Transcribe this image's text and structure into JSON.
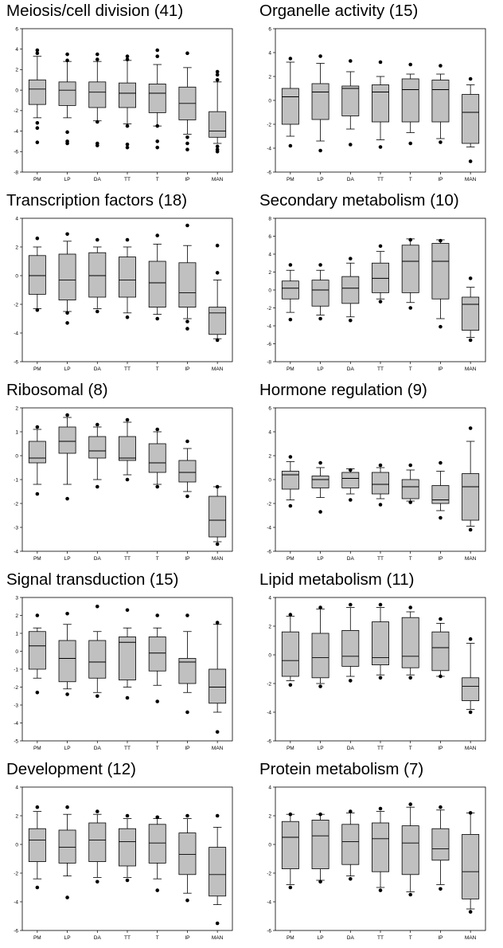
{
  "chart_data": [
    {
      "type": "box",
      "title": "Meiosis/cell division (41)",
      "categories": [
        "PM",
        "LP",
        "DA",
        "TT",
        "T",
        "IP",
        "MAN"
      ],
      "ylim": [
        -8,
        6
      ],
      "yticks": [
        -8,
        -6,
        -4,
        -2,
        0,
        2,
        4,
        6
      ],
      "boxes": [
        {
          "q1": -1.4,
          "median": 0.1,
          "q3": 1.0,
          "whisker_low": -2.7,
          "whisker_high": 3.3,
          "outliers": [
            3.9,
            3.6,
            -3.2,
            -3.7,
            -5.1
          ]
        },
        {
          "q1": -1.5,
          "median": 0.0,
          "q3": 0.8,
          "whisker_low": -2.7,
          "whisker_high": 2.8,
          "outliers": [
            3.5,
            2.9,
            -4.1,
            -5.0,
            -5.2
          ]
        },
        {
          "q1": -1.7,
          "median": -0.2,
          "q3": 0.8,
          "whisker_low": -3.0,
          "whisker_high": 2.8,
          "outliers": [
            3.5,
            3.0,
            -3.1,
            -5.2,
            -5.4
          ]
        },
        {
          "q1": -1.7,
          "median": -0.3,
          "q3": 0.7,
          "whisker_low": -3.3,
          "whisker_high": 2.9,
          "outliers": [
            3.3,
            3.0,
            -3.5,
            -5.3,
            -5.6
          ]
        },
        {
          "q1": -2.2,
          "median": -0.3,
          "q3": 0.6,
          "whisker_low": -3.5,
          "whisker_high": 2.5,
          "outliers": [
            3.9,
            3.3,
            -3.5,
            -5.0,
            -5.6
          ]
        },
        {
          "q1": -2.9,
          "median": -1.3,
          "q3": 0.3,
          "whisker_low": -4.3,
          "whisker_high": 2.2,
          "outliers": [
            3.6,
            -4.6,
            -5.2,
            -5.8
          ]
        },
        {
          "q1": -4.6,
          "median": -4.0,
          "q3": -2.1,
          "whisker_low": -5.2,
          "whisker_high": 0.8,
          "outliers": [
            1.8,
            1.5,
            1.0,
            -5.5,
            -5.8,
            -6.0
          ]
        }
      ]
    },
    {
      "type": "box",
      "title": "Organelle activity (15)",
      "categories": [
        "PM",
        "LP",
        "DA",
        "TT",
        "T",
        "IP",
        "MAN"
      ],
      "ylim": [
        -6,
        6
      ],
      "yticks": [
        -6,
        -4,
        -2,
        0,
        2,
        4,
        6
      ],
      "boxes": [
        {
          "q1": -2.0,
          "median": 0.3,
          "q3": 1.0,
          "whisker_low": -3.0,
          "whisker_high": 3.2,
          "outliers": [
            3.5,
            -3.8
          ]
        },
        {
          "q1": -1.6,
          "median": 0.7,
          "q3": 1.4,
          "whisker_low": -3.4,
          "whisker_high": 3.1,
          "outliers": [
            3.7,
            -4.2
          ]
        },
        {
          "q1": -1.3,
          "median": 1.0,
          "q3": 1.2,
          "whisker_low": -2.4,
          "whisker_high": 2.4,
          "outliers": [
            3.3,
            -3.7
          ]
        },
        {
          "q1": -1.8,
          "median": 0.7,
          "q3": 1.3,
          "whisker_low": -3.3,
          "whisker_high": 2.0,
          "outliers": [
            3.2,
            -3.9
          ]
        },
        {
          "q1": -1.8,
          "median": 0.9,
          "q3": 1.8,
          "whisker_low": -2.7,
          "whisker_high": 2.2,
          "outliers": [
            3.0,
            -3.6
          ]
        },
        {
          "q1": -1.8,
          "median": 0.9,
          "q3": 1.7,
          "whisker_low": -3.2,
          "whisker_high": 2.2,
          "outliers": [
            2.9,
            -3.5
          ]
        },
        {
          "q1": -3.6,
          "median": -1.0,
          "q3": 0.5,
          "whisker_low": -3.9,
          "whisker_high": 1.3,
          "outliers": [
            1.8,
            -5.1
          ]
        }
      ]
    },
    {
      "type": "box",
      "title": "Transcription factors (18)",
      "categories": [
        "PM",
        "LP",
        "DA",
        "TT",
        "T",
        "IP",
        "MAN"
      ],
      "ylim": [
        -6,
        4
      ],
      "yticks": [
        -6,
        -4,
        -2,
        0,
        2,
        4
      ],
      "boxes": [
        {
          "q1": -1.3,
          "median": 0.0,
          "q3": 1.4,
          "whisker_low": -2.3,
          "whisker_high": 2.0,
          "outliers": [
            2.6,
            -2.4
          ]
        },
        {
          "q1": -1.7,
          "median": -0.3,
          "q3": 1.5,
          "whisker_low": -2.5,
          "whisker_high": 2.4,
          "outliers": [
            2.9,
            -2.6,
            -3.3
          ]
        },
        {
          "q1": -1.5,
          "median": 0.0,
          "q3": 1.6,
          "whisker_low": -2.3,
          "whisker_high": 2.0,
          "outliers": [
            2.5,
            -2.5
          ]
        },
        {
          "q1": -1.5,
          "median": -0.3,
          "q3": 1.3,
          "whisker_low": -2.6,
          "whisker_high": 2.0,
          "outliers": [
            2.5,
            -2.9
          ]
        },
        {
          "q1": -2.2,
          "median": -0.5,
          "q3": 1.0,
          "whisker_low": -2.7,
          "whisker_high": 2.2,
          "outliers": [
            2.8,
            -3.0
          ]
        },
        {
          "q1": -2.2,
          "median": -1.2,
          "q3": 0.9,
          "whisker_low": -3.0,
          "whisker_high": 2.1,
          "outliers": [
            3.5,
            -3.2,
            -3.7
          ]
        },
        {
          "q1": -4.1,
          "median": -2.6,
          "q3": -2.2,
          "whisker_low": -4.4,
          "whisker_high": -0.3,
          "outliers": [
            2.1,
            0.2,
            -4.5
          ]
        }
      ]
    },
    {
      "type": "box",
      "title": "Secondary metabolism (10)",
      "categories": [
        "PM",
        "LP",
        "DA",
        "TT",
        "T",
        "IP",
        "MAN"
      ],
      "ylim": [
        -8,
        8
      ],
      "yticks": [
        -8,
        -6,
        -4,
        -2,
        0,
        2,
        4,
        6,
        8
      ],
      "boxes": [
        {
          "q1": -1.0,
          "median": 0.2,
          "q3": 1.0,
          "whisker_low": -2.5,
          "whisker_high": 2.2,
          "outliers": [
            2.8,
            -3.3
          ]
        },
        {
          "q1": -1.8,
          "median": 0.0,
          "q3": 1.1,
          "whisker_low": -2.8,
          "whisker_high": 2.2,
          "outliers": [
            2.8,
            -3.2
          ]
        },
        {
          "q1": -1.5,
          "median": 0.2,
          "q3": 1.5,
          "whisker_low": -3.0,
          "whisker_high": 3.0,
          "outliers": [
            3.5,
            -3.4
          ]
        },
        {
          "q1": -0.3,
          "median": 1.3,
          "q3": 3.0,
          "whisker_low": -1.0,
          "whisker_high": 4.3,
          "outliers": [
            4.9,
            -1.3
          ]
        },
        {
          "q1": -0.3,
          "median": 3.2,
          "q3": 5.0,
          "whisker_low": -1.4,
          "whisker_high": 5.7,
          "outliers": [
            5.6,
            -2.0
          ]
        },
        {
          "q1": -1.0,
          "median": 3.2,
          "q3": 5.2,
          "whisker_low": -3.2,
          "whisker_high": 5.6,
          "outliers": [
            5.5,
            -4.1
          ]
        },
        {
          "q1": -4.5,
          "median": -1.6,
          "q3": -0.8,
          "whisker_low": -5.3,
          "whisker_high": 0.3,
          "outliers": [
            1.3,
            -5.6
          ]
        }
      ]
    },
    {
      "type": "box",
      "title": "Ribosomal (8)",
      "categories": [
        "PM",
        "LP",
        "DA",
        "TT",
        "T",
        "IP",
        "MAN"
      ],
      "ylim": [
        -4,
        2
      ],
      "yticks": [
        -4,
        -3,
        -2,
        -1,
        0,
        1,
        2
      ],
      "boxes": [
        {
          "q1": -0.3,
          "median": -0.1,
          "q3": 0.6,
          "whisker_low": -1.2,
          "whisker_high": 1.1,
          "outliers": [
            1.2,
            -1.6
          ]
        },
        {
          "q1": 0.1,
          "median": 0.6,
          "q3": 1.2,
          "whisker_low": -1.2,
          "whisker_high": 1.6,
          "outliers": [
            1.7,
            -1.8
          ]
        },
        {
          "q1": -0.1,
          "median": 0.2,
          "q3": 0.8,
          "whisker_low": -1.0,
          "whisker_high": 1.2,
          "outliers": [
            1.3,
            -1.3
          ]
        },
        {
          "q1": -0.2,
          "median": -0.1,
          "q3": 0.8,
          "whisker_low": -0.8,
          "whisker_high": 1.4,
          "outliers": [
            1.5,
            -1.0
          ]
        },
        {
          "q1": -0.7,
          "median": -0.3,
          "q3": 0.5,
          "whisker_low": -1.2,
          "whisker_high": 1.0,
          "outliers": [
            1.1,
            -1.3
          ]
        },
        {
          "q1": -1.1,
          "median": -0.7,
          "q3": -0.2,
          "whisker_low": -1.5,
          "whisker_high": 0.3,
          "outliers": [
            0.6,
            -1.7
          ]
        },
        {
          "q1": -3.4,
          "median": -2.7,
          "q3": -1.7,
          "whisker_low": -3.6,
          "whisker_high": -1.3,
          "outliers": [
            -1.3,
            -3.7
          ]
        }
      ]
    },
    {
      "type": "box",
      "title": "Hormone regulation (9)",
      "categories": [
        "PM",
        "LP",
        "DA",
        "TT",
        "T",
        "IP",
        "MAN"
      ],
      "ylim": [
        -6,
        6
      ],
      "yticks": [
        -6,
        -4,
        -2,
        0,
        2,
        4,
        6
      ],
      "boxes": [
        {
          "q1": -0.8,
          "median": 0.4,
          "q3": 0.7,
          "whisker_low": -1.7,
          "whisker_high": 1.5,
          "outliers": [
            1.9,
            -2.2
          ]
        },
        {
          "q1": -0.7,
          "median": 0.0,
          "q3": 0.3,
          "whisker_low": -1.5,
          "whisker_high": 1.0,
          "outliers": [
            1.4,
            -2.7
          ]
        },
        {
          "q1": -0.7,
          "median": 0.1,
          "q3": 0.6,
          "whisker_low": -1.2,
          "whisker_high": 0.9,
          "outliers": [
            0.8,
            -1.7
          ]
        },
        {
          "q1": -1.2,
          "median": -0.4,
          "q3": 0.6,
          "whisker_low": -1.6,
          "whisker_high": 1.0,
          "outliers": [
            1.2,
            -2.1
          ]
        },
        {
          "q1": -1.6,
          "median": -0.6,
          "q3": 0.0,
          "whisker_low": -1.8,
          "whisker_high": 0.8,
          "outliers": [
            1.2,
            -1.9
          ]
        },
        {
          "q1": -2.0,
          "median": -1.7,
          "q3": -0.5,
          "whisker_low": -2.6,
          "whisker_high": 0.7,
          "outliers": [
            1.4,
            -3.2
          ]
        },
        {
          "q1": -3.4,
          "median": -0.6,
          "q3": 0.5,
          "whisker_low": -3.9,
          "whisker_high": 3.2,
          "outliers": [
            4.3,
            -4.2
          ]
        }
      ]
    },
    {
      "type": "box",
      "title": "Signal transduction (15)",
      "categories": [
        "PM",
        "LP",
        "DA",
        "TT",
        "T",
        "IP",
        "MAN"
      ],
      "ylim": [
        -5,
        3
      ],
      "yticks": [
        -5,
        -4,
        -3,
        -2,
        -1,
        0,
        1,
        2,
        3
      ],
      "boxes": [
        {
          "q1": -1.0,
          "median": 0.3,
          "q3": 1.1,
          "whisker_low": -1.5,
          "whisker_high": 1.3,
          "outliers": [
            2.0,
            -2.3
          ]
        },
        {
          "q1": -1.7,
          "median": -0.4,
          "q3": 0.6,
          "whisker_low": -2.1,
          "whisker_high": 1.5,
          "outliers": [
            2.1,
            -2.4
          ]
        },
        {
          "q1": -1.5,
          "median": -0.6,
          "q3": 0.6,
          "whisker_low": -2.3,
          "whisker_high": 1.1,
          "outliers": [
            2.5,
            -2.5
          ]
        },
        {
          "q1": -1.6,
          "median": 0.5,
          "q3": 0.8,
          "whisker_low": -2.0,
          "whisker_high": 1.3,
          "outliers": [
            2.3,
            -2.6
          ]
        },
        {
          "q1": -1.1,
          "median": -0.1,
          "q3": 0.8,
          "whisker_low": -1.9,
          "whisker_high": 1.3,
          "outliers": [
            2.0,
            -2.8
          ]
        },
        {
          "q1": -1.8,
          "median": -0.6,
          "q3": -0.4,
          "whisker_low": -2.3,
          "whisker_high": 1.1,
          "outliers": [
            2.0,
            -3.4
          ]
        },
        {
          "q1": -2.9,
          "median": -2.0,
          "q3": -1.0,
          "whisker_low": -3.4,
          "whisker_high": 1.5,
          "outliers": [
            1.6,
            -4.5
          ]
        }
      ]
    },
    {
      "type": "box",
      "title": "Lipid metabolism (11)",
      "categories": [
        "PM",
        "LP",
        "DA",
        "TT",
        "T",
        "IP",
        "MAN"
      ],
      "ylim": [
        -6,
        4
      ],
      "yticks": [
        -6,
        -4,
        -2,
        0,
        2,
        4
      ],
      "boxes": [
        {
          "q1": -1.5,
          "median": -0.4,
          "q3": 1.6,
          "whisker_low": -1.8,
          "whisker_high": 2.7,
          "outliers": [
            2.8,
            -2.1
          ]
        },
        {
          "q1": -1.6,
          "median": -0.2,
          "q3": 1.5,
          "whisker_low": -2.0,
          "whisker_high": 3.2,
          "outliers": [
            3.3,
            -2.2
          ]
        },
        {
          "q1": -0.8,
          "median": -0.1,
          "q3": 1.7,
          "whisker_low": -1.5,
          "whisker_high": 3.3,
          "outliers": [
            3.5,
            -1.8
          ]
        },
        {
          "q1": -0.7,
          "median": -0.2,
          "q3": 2.3,
          "whisker_low": -1.4,
          "whisker_high": 3.3,
          "outliers": [
            3.5,
            -1.6
          ]
        },
        {
          "q1": -0.9,
          "median": -0.1,
          "q3": 2.6,
          "whisker_low": -1.4,
          "whisker_high": 3.0,
          "outliers": [
            3.3,
            -1.6
          ]
        },
        {
          "q1": -1.1,
          "median": 0.5,
          "q3": 1.6,
          "whisker_low": -1.5,
          "whisker_high": 2.2,
          "outliers": [
            2.5,
            -1.5
          ]
        },
        {
          "q1": -3.2,
          "median": -2.2,
          "q3": -1.6,
          "whisker_low": -3.8,
          "whisker_high": 0.8,
          "outliers": [
            1.1,
            -4.0
          ]
        }
      ]
    },
    {
      "type": "box",
      "title": "Development (12)",
      "categories": [
        "PM",
        "LP",
        "DA",
        "TT",
        "T",
        "IP",
        "MAN"
      ],
      "ylim": [
        -6,
        4
      ],
      "yticks": [
        -6,
        -4,
        -2,
        0,
        2,
        4
      ],
      "boxes": [
        {
          "q1": -1.2,
          "median": 0.3,
          "q3": 1.1,
          "whisker_low": -2.4,
          "whisker_high": 2.3,
          "outliers": [
            2.6,
            -3.0
          ]
        },
        {
          "q1": -1.3,
          "median": -0.2,
          "q3": 1.0,
          "whisker_low": -2.2,
          "whisker_high": 2.1,
          "outliers": [
            2.6,
            -3.7
          ]
        },
        {
          "q1": -1.2,
          "median": 0.3,
          "q3": 1.5,
          "whisker_low": -2.3,
          "whisker_high": 2.1,
          "outliers": [
            2.3,
            -2.6
          ]
        },
        {
          "q1": -1.5,
          "median": 0.2,
          "q3": 1.1,
          "whisker_low": -2.3,
          "whisker_high": 1.8,
          "outliers": [
            2.0,
            -2.5
          ]
        },
        {
          "q1": -1.3,
          "median": 0.1,
          "q3": 1.4,
          "whisker_low": -2.4,
          "whisker_high": 1.8,
          "outliers": [
            1.9,
            -3.2
          ]
        },
        {
          "q1": -2.1,
          "median": -0.7,
          "q3": 0.8,
          "whisker_low": -3.4,
          "whisker_high": 1.8,
          "outliers": [
            2.0,
            -3.9
          ]
        },
        {
          "q1": -3.6,
          "median": -2.1,
          "q3": -0.2,
          "whisker_low": -4.2,
          "whisker_high": 1.2,
          "outliers": [
            2.0,
            -5.5
          ]
        }
      ]
    },
    {
      "type": "box",
      "title": "Protein metabolism (7)",
      "categories": [
        "PM",
        "LP",
        "DA",
        "TT",
        "T",
        "IP",
        "MAN"
      ],
      "ylim": [
        -6,
        4
      ],
      "yticks": [
        -6,
        -4,
        -2,
        0,
        2,
        4
      ],
      "boxes": [
        {
          "q1": -1.7,
          "median": 0.5,
          "q3": 1.6,
          "whisker_low": -2.8,
          "whisker_high": 2.1,
          "outliers": [
            2.1,
            -3.0
          ]
        },
        {
          "q1": -1.7,
          "median": 0.6,
          "q3": 1.7,
          "whisker_low": -2.5,
          "whisker_high": 2.1,
          "outliers": [
            2.1,
            -2.6
          ]
        },
        {
          "q1": -1.4,
          "median": 0.2,
          "q3": 1.4,
          "whisker_low": -2.2,
          "whisker_high": 2.2,
          "outliers": [
            2.3,
            -2.4
          ]
        },
        {
          "q1": -1.9,
          "median": 0.4,
          "q3": 1.5,
          "whisker_low": -3.0,
          "whisker_high": 2.3,
          "outliers": [
            2.5,
            -3.2
          ]
        },
        {
          "q1": -2.1,
          "median": 0.1,
          "q3": 1.3,
          "whisker_low": -3.3,
          "whisker_high": 2.6,
          "outliers": [
            2.8,
            -3.5
          ]
        },
        {
          "q1": -1.1,
          "median": -0.3,
          "q3": 1.1,
          "whisker_low": -2.8,
          "whisker_high": 2.4,
          "outliers": [
            2.6,
            -3.1
          ]
        },
        {
          "q1": -3.8,
          "median": -1.9,
          "q3": 0.7,
          "whisker_low": -4.5,
          "whisker_high": 2.2,
          "outliers": [
            2.2,
            -4.7
          ]
        }
      ]
    }
  ]
}
